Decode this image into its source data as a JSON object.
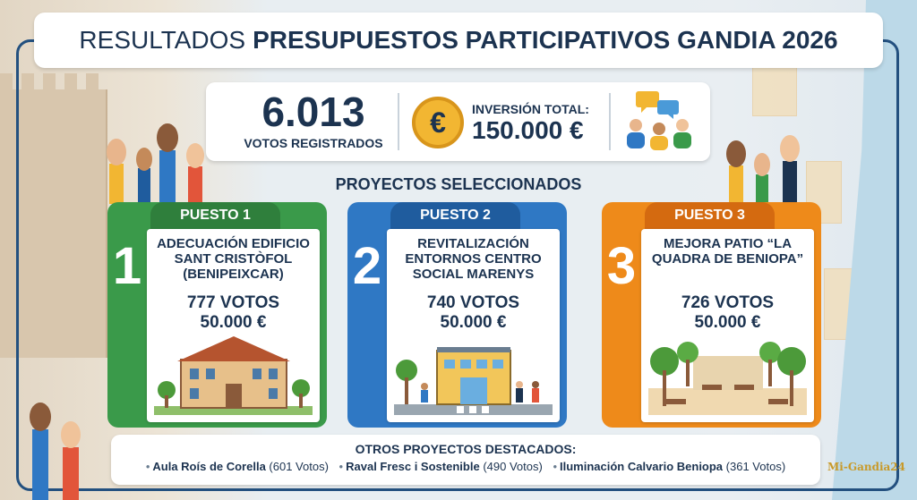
{
  "title": {
    "prefix": "RESULTADOS",
    "main": "PRESUPUESTOS PARTICIPATIVOS GANDIA 2026"
  },
  "stats": {
    "votes_value": "6.013",
    "votes_label": "VOTOS REGISTRADOS",
    "currency_symbol": "€",
    "investment_label": "INVERSIÓN TOTAL:",
    "investment_value": "150.000 €",
    "icons": [
      "euro-coin-icon",
      "people-discussion-icon"
    ]
  },
  "section_title": "PROYECTOS SELECCIONADOS",
  "projects": [
    {
      "rank_label": "PUESTO 1",
      "rank": "1",
      "name": "ADECUACIÓN EDIFICIO SANT CRISTÒFOL (BENIPEIXCAR)",
      "votes": "777 VOTOS",
      "amount": "50.000 €",
      "color": "#3a9a4a",
      "dark": "#2f7f3c",
      "icon": "historic-building-icon"
    },
    {
      "rank_label": "PUESTO 2",
      "rank": "2",
      "name": "REVITALIZACIÓN ENTORNOS CENTRO SOCIAL MARENYS",
      "votes": "740 VOTOS",
      "amount": "50.000 €",
      "color": "#2f78c4",
      "dark": "#1f5c9e",
      "icon": "social-center-street-icon"
    },
    {
      "rank_label": "PUESTO 3",
      "rank": "3",
      "name": "MEJORA PATIO “LA QUADRA DE BENIOPA”",
      "votes": "726 VOTOS",
      "amount": "50.000 €",
      "color": "#ee8a1a",
      "dark": "#d46a10",
      "icon": "park-courtyard-icon"
    }
  ],
  "others": {
    "title": "OTROS PROYECTOS DESTACADOS:",
    "items": [
      {
        "name": "Aula Roís de Corella",
        "votes": "(601 Votos)"
      },
      {
        "name": "Raval Fresc i Sostenible",
        "votes": "(490 Votos)"
      },
      {
        "name": "Iluminación Calvario Beniopa",
        "votes": "(361 Votos)"
      }
    ]
  },
  "watermark": "Mi-Gandia24"
}
